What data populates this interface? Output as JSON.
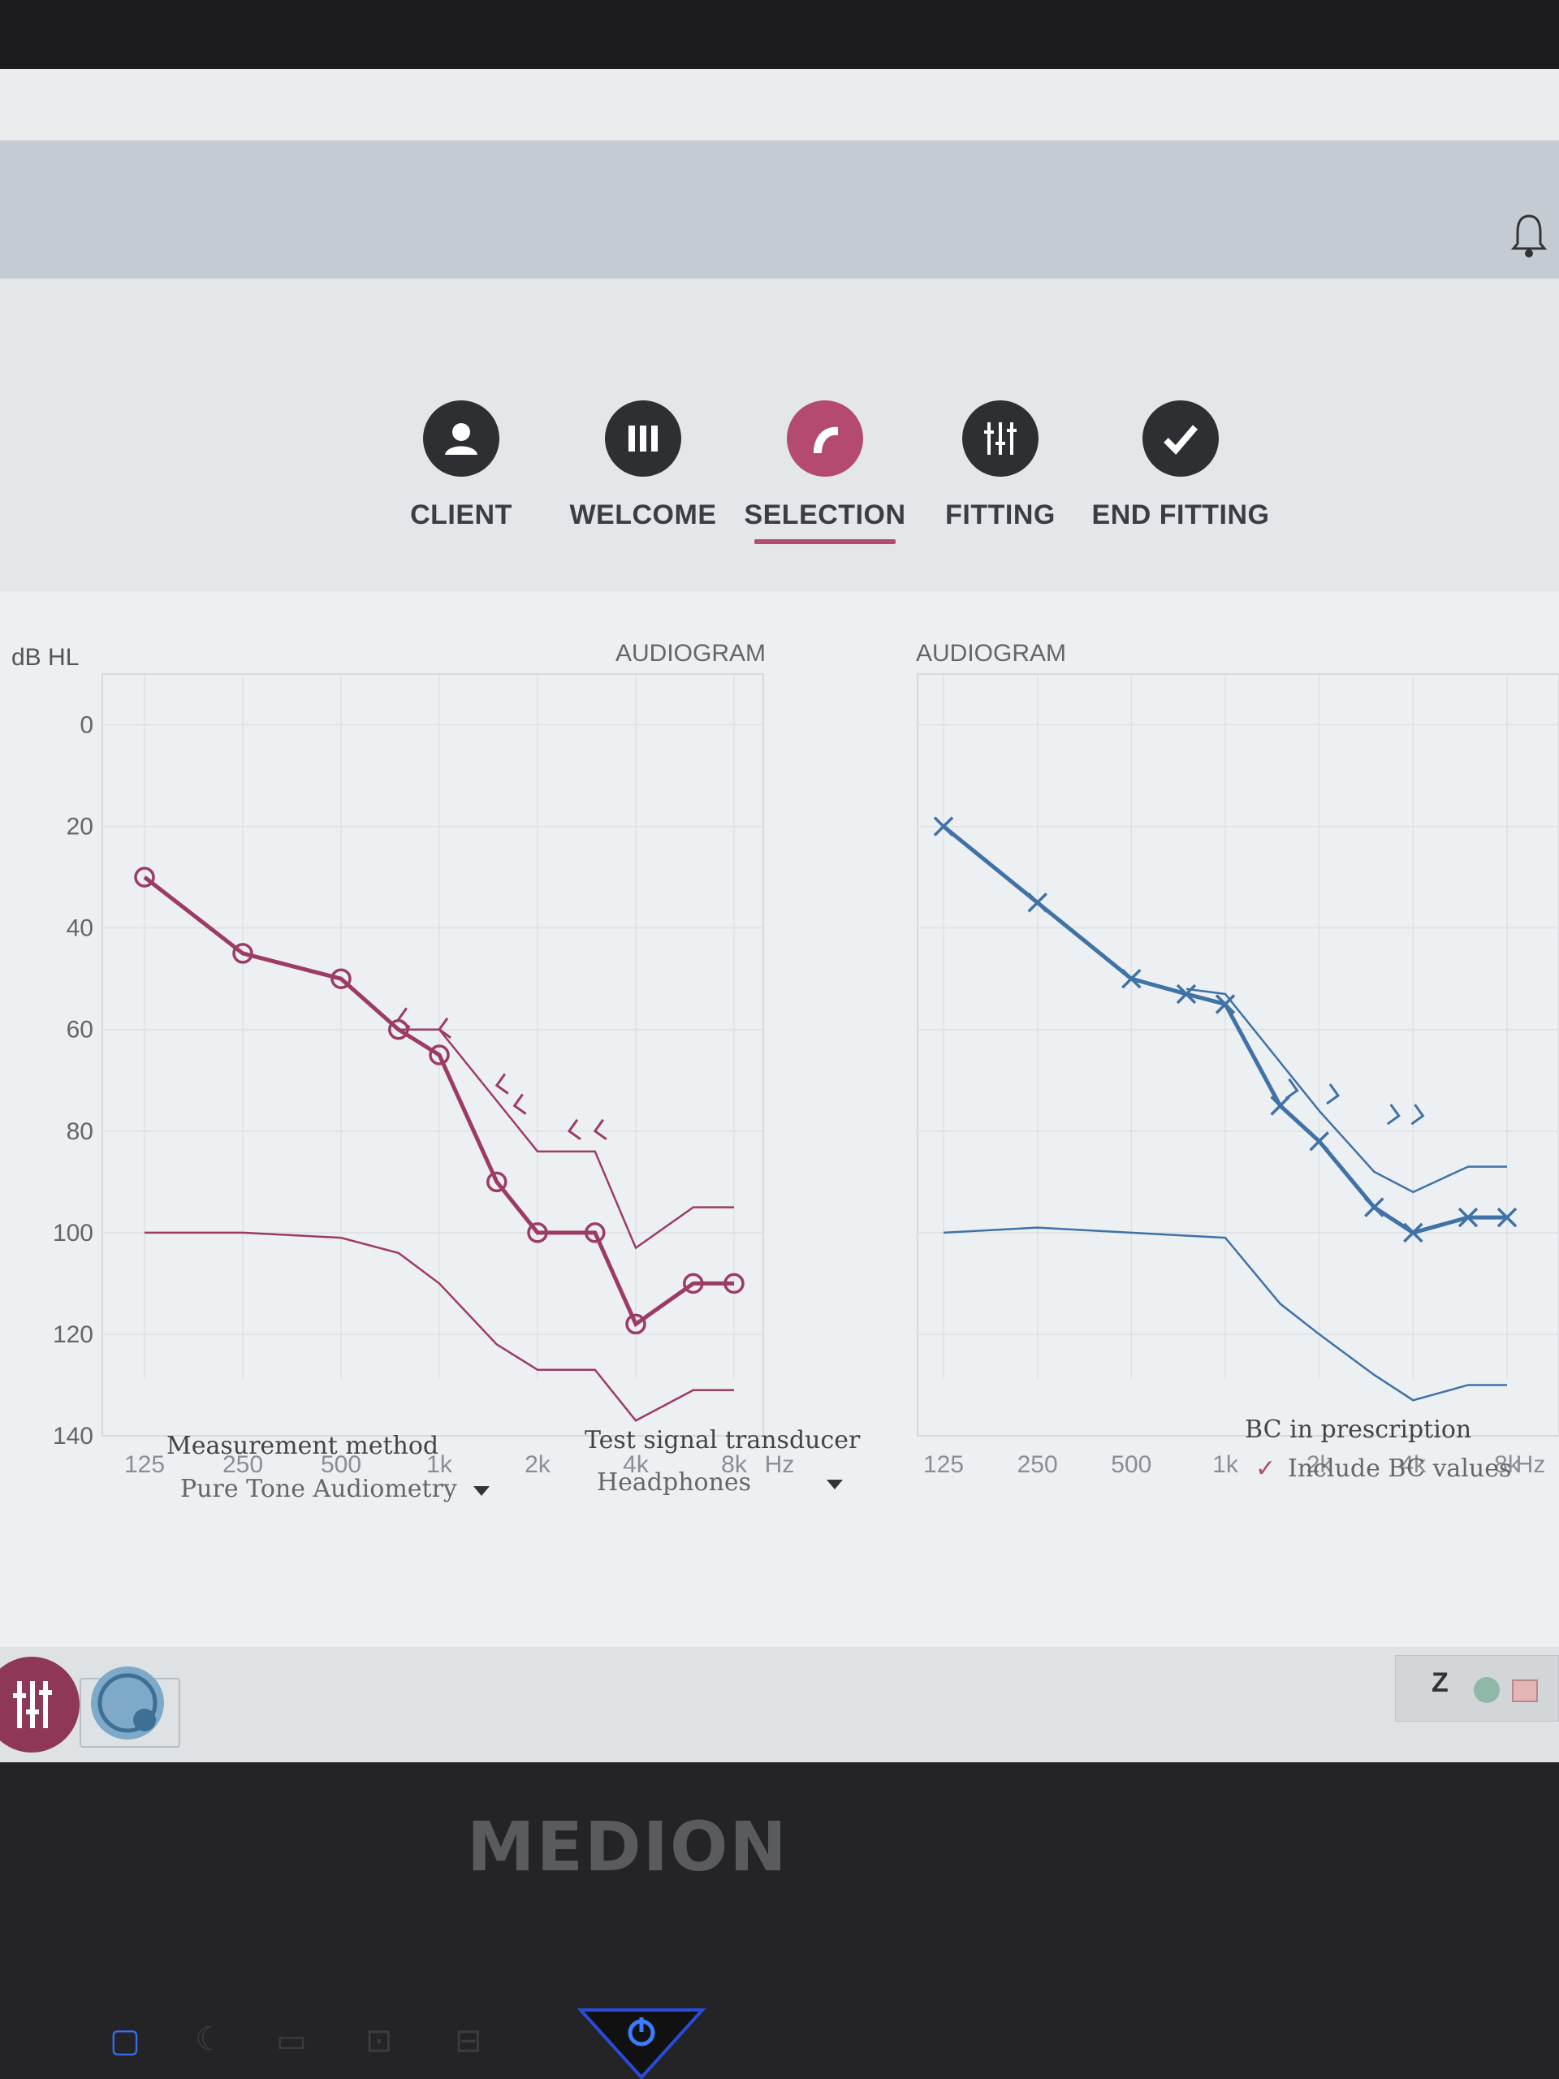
{
  "nav": {
    "steps": [
      {
        "label": "CLIENT"
      },
      {
        "label": "WELCOME"
      },
      {
        "label": "SELECTION"
      },
      {
        "label": "FITTING"
      },
      {
        "label": "END FITTING"
      }
    ],
    "active": "SELECTION"
  },
  "audiogram": {
    "unit_label": "dB HL",
    "left_title": "AUDIOGRAM",
    "right_title": "AUDIOGRAM",
    "y_ticks": [
      "0",
      "20",
      "40",
      "60",
      "80",
      "100",
      "120",
      "140"
    ],
    "x_ticks": [
      "125",
      "250",
      "500",
      "1k",
      "2k",
      "4k",
      "8k"
    ],
    "x_unit_left": "Hz",
    "x_unit_right": "Hz"
  },
  "chart_data": [
    {
      "type": "line",
      "title": "AUDIOGRAM",
      "ylabel": "dB HL",
      "xlabel": "Hz",
      "x": [
        "125",
        "250",
        "500",
        "1k",
        "2k",
        "4k",
        "8k"
      ],
      "ylim": [
        -10,
        140
      ],
      "y_inverted": true,
      "grid": true,
      "color": "#9c3c63",
      "series": [
        {
          "values": [
            [
              125,
              30
            ],
            [
              250,
              45
            ],
            [
              500,
              50
            ],
            [
              750,
              60
            ],
            [
              1000,
              65
            ],
            [
              1500,
              90
            ],
            [
              2000,
              100
            ],
            [
              3000,
              100
            ],
            [
              4000,
              118
            ],
            [
              6000,
              110
            ],
            [
              8000,
              110
            ]
          ]
        },
        {
          "values": [
            [
              750,
              60
            ],
            [
              1000,
              60
            ],
            [
              2000,
              84
            ],
            [
              3000,
              84
            ],
            [
              4000,
              103
            ],
            [
              6000,
              95
            ],
            [
              8000,
              95
            ]
          ]
        },
        {
          "values": [
            [
              125,
              100
            ],
            [
              250,
              100
            ],
            [
              500,
              101
            ],
            [
              750,
              104
            ],
            [
              1000,
              110
            ],
            [
              1500,
              122
            ],
            [
              2000,
              127
            ],
            [
              3000,
              127
            ],
            [
              4000,
              137
            ],
            [
              6000,
              131
            ],
            [
              8000,
              131
            ]
          ]
        },
        {
          "values": [
            [
              750,
              58
            ],
            [
              1000,
              60
            ],
            [
              1500,
              71
            ],
            [
              1700,
              75
            ],
            [
              2500,
              80
            ],
            [
              3000,
              80
            ]
          ]
        }
      ]
    },
    {
      "type": "line",
      "title": "AUDIOGRAM",
      "xlabel": "Hz",
      "x": [
        "125",
        "250",
        "500",
        "1k",
        "2k",
        "4k",
        "8k"
      ],
      "ylim": [
        -10,
        140
      ],
      "y_inverted": true,
      "grid": true,
      "color": "#3f72a6",
      "series": [
        {
          "values": [
            [
              125,
              20
            ],
            [
              250,
              35
            ],
            [
              500,
              50
            ],
            [
              750,
              53
            ],
            [
              1000,
              55
            ],
            [
              1500,
              75
            ],
            [
              2000,
              82
            ],
            [
              3000,
              95
            ],
            [
              4000,
              100
            ],
            [
              6000,
              97
            ],
            [
              8000,
              97
            ]
          ]
        },
        {
          "values": [
            [
              750,
              52
            ],
            [
              1000,
              53
            ],
            [
              2000,
              76
            ],
            [
              3000,
              88
            ],
            [
              4000,
              92
            ],
            [
              6000,
              87
            ],
            [
              8000,
              87
            ]
          ]
        },
        {
          "values": [
            [
              125,
              100
            ],
            [
              250,
              99
            ],
            [
              500,
              100
            ],
            [
              1000,
              101
            ],
            [
              1500,
              114
            ],
            [
              2000,
              120
            ],
            [
              3000,
              128
            ],
            [
              4000,
              133
            ],
            [
              6000,
              130
            ],
            [
              8000,
              130
            ]
          ]
        },
        {
          "values": [
            [
              1700,
              72
            ],
            [
              2300,
              73
            ],
            [
              3600,
              77
            ],
            [
              4300,
              77
            ]
          ]
        }
      ]
    }
  ],
  "controls": {
    "measurement_label": "Measurement method",
    "measurement_value": "Pure Tone Audiometry",
    "transducer_label": "Test signal transducer",
    "transducer_value": "Headphones",
    "bc_label": "BC in prescription",
    "bc_check": "✓",
    "bc_value": "Include BC values"
  },
  "taskbar": {
    "tray_text": "Z"
  },
  "bezel": {
    "brand": "MEDION"
  },
  "colors": {
    "left_ear": "#9c3c63",
    "right_ear": "#3f72a6",
    "accent": "#b44a72"
  }
}
